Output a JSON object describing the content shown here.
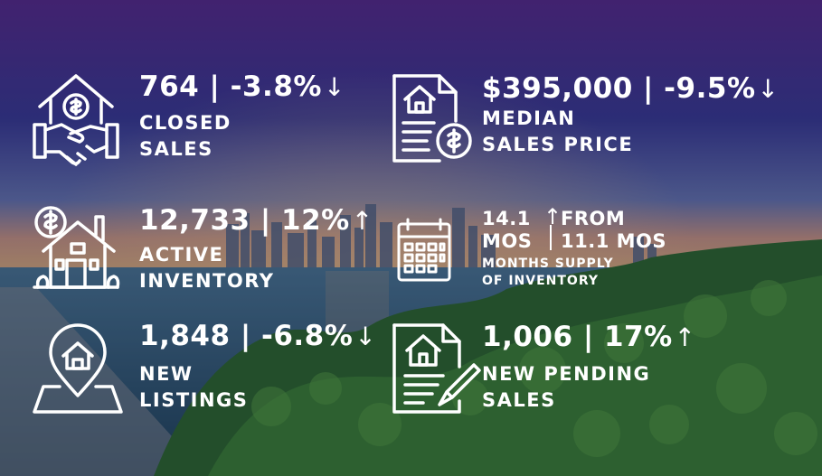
{
  "stats": {
    "closed_sales": {
      "value": "764 | -3.8%",
      "arrow": "↓",
      "label_line1": "CLOSED",
      "label_line2": "SALES",
      "icon": "house-handshake-icon"
    },
    "median_price": {
      "value": "$395,000 | -9.5%",
      "arrow": "↓",
      "label_line1": "MEDIAN",
      "label_line2": "SALES PRICE",
      "icon": "document-dollar-icon"
    },
    "active_inventory": {
      "value": "12,733 | 12%",
      "arrow": "↑",
      "label_line1": "ACTIVE",
      "label_line2": "INVENTORY",
      "icon": "house-dollar-icon"
    },
    "months_supply": {
      "value_line1": "14.1",
      "value_line2": "MOS",
      "change_arrow": "↑",
      "change_line1": "FROM",
      "change_line2": "11.1 MOS",
      "label_line1": "MONTHS SUPPLY",
      "label_line2": "OF INVENTORY",
      "icon": "calendar-icon"
    },
    "new_listings": {
      "value": "1,848 | -6.8%",
      "arrow": "↓",
      "label_line1": "NEW",
      "label_line2": "LISTINGS",
      "icon": "map-pin-house-icon"
    },
    "pending_sales": {
      "value": "1,006 | 17%",
      "arrow": "↑",
      "label_line1": "NEW PENDING",
      "label_line2": "SALES",
      "icon": "document-pen-icon"
    }
  },
  "colors": {
    "text": "#ffffff",
    "sky_top": "#5a2d8c",
    "water": "#2d5673",
    "foliage": "#2f6b2a"
  }
}
